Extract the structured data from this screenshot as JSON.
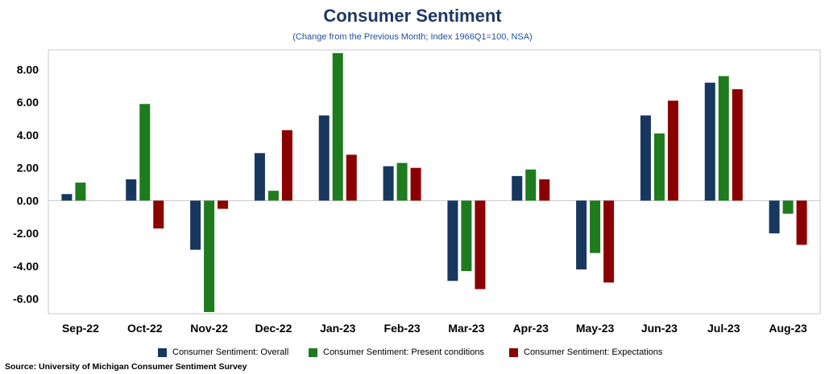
{
  "header": {
    "title": "Consumer Sentiment",
    "subtitle": "(Change from the Previous Month; Index 1966Q1=100, NSA)"
  },
  "source": "Source: University of Michigan Consumer Sentiment Survey",
  "colors": {
    "overall": "#17375e",
    "present": "#1e7b1e",
    "expectations": "#8b0000"
  },
  "chart_data": {
    "type": "bar",
    "title": "Consumer Sentiment",
    "subtitle": "(Change from the Previous Month; Index 1966Q1=100, NSA)",
    "categories": [
      "Sep-22",
      "Oct-22",
      "Nov-22",
      "Dec-22",
      "Jan-23",
      "Feb-23",
      "Mar-23",
      "Apr-23",
      "May-23",
      "Jun-23",
      "Jul-23",
      "Aug-23"
    ],
    "series": [
      {
        "name": "Consumer Sentiment: Overall",
        "color": "#17375e",
        "values": [
          0.4,
          1.3,
          -3.0,
          2.9,
          5.2,
          2.1,
          -4.9,
          1.5,
          -4.2,
          5.2,
          7.2,
          -2.0
        ]
      },
      {
        "name": "Consumer Sentiment: Present conditions",
        "color": "#1e7b1e",
        "values": [
          1.1,
          5.9,
          -6.8,
          0.6,
          9.0,
          2.3,
          -4.3,
          1.9,
          -3.2,
          4.1,
          7.6,
          -0.8
        ]
      },
      {
        "name": "Consumer Sentiment: Expectations",
        "color": "#8b0000",
        "values": [
          0.0,
          -1.7,
          -0.5,
          4.3,
          2.8,
          2.0,
          -5.4,
          1.3,
          -5.0,
          6.1,
          6.8,
          -2.7
        ]
      }
    ],
    "y_ticks": [
      "8.00",
      "6.00",
      "4.00",
      "2.00",
      "0.00",
      "-2.00",
      "-4.00",
      "-6.00"
    ],
    "ylim": [
      -6.9,
      9.2
    ],
    "grid": false,
    "legend_position": "bottom"
  }
}
